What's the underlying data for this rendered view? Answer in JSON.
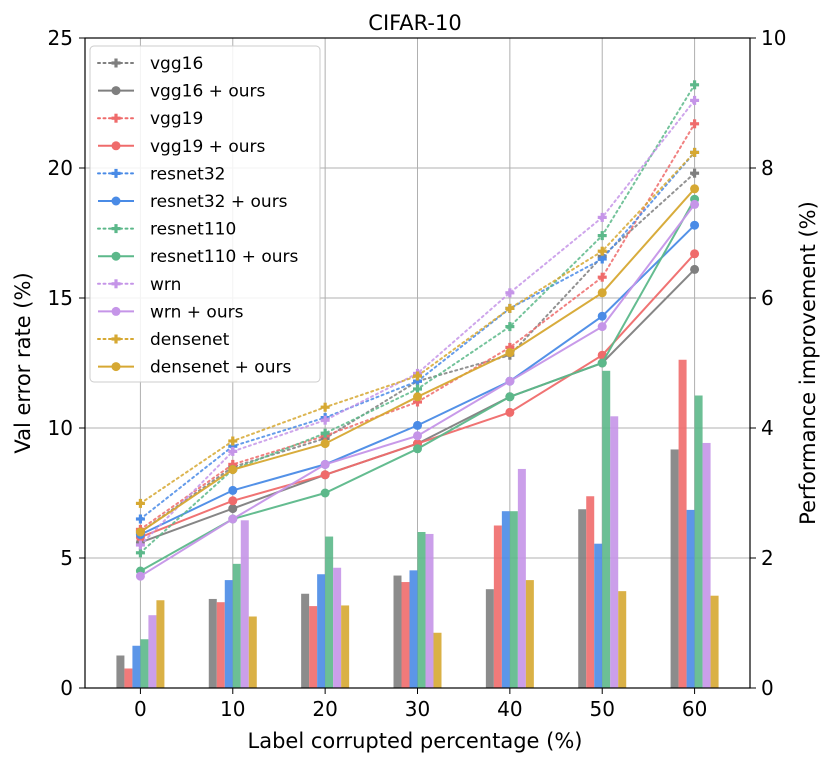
{
  "chart_data": {
    "type": "line+bar",
    "title": "CIFAR-10",
    "xlabel": "Label corrupted percentage (%)",
    "ylabel": "Val error rate (%)",
    "y2label": "Performance improvement (%)",
    "x": [
      0,
      10,
      20,
      30,
      40,
      50,
      60
    ],
    "xticks": [
      "0",
      "10",
      "20",
      "30",
      "40",
      "50",
      "60"
    ],
    "ylim": [
      0,
      25
    ],
    "yticks": [
      "0",
      "5",
      "10",
      "15",
      "20",
      "25"
    ],
    "y2lim": [
      0,
      10
    ],
    "y2ticks": [
      "0",
      "2",
      "4",
      "6",
      "8",
      "10"
    ],
    "grid": true,
    "legend_position": "top-left",
    "colors": {
      "vgg16": "#7f7f7f",
      "vgg19": "#ef6b6b",
      "resnet32": "#4a8be6",
      "resnet110": "#5cb88a",
      "wrn": "#c595e8",
      "densenet": "#d6a832"
    },
    "series": [
      {
        "name": "vgg16",
        "model": "vgg16",
        "style": "baseline",
        "values": [
          6.0,
          8.5,
          9.6,
          11.8,
          12.8,
          16.6,
          19.8
        ]
      },
      {
        "name": "vgg16 + ours",
        "model": "vgg16",
        "style": "ours",
        "values": [
          5.6,
          6.9,
          8.2,
          9.4,
          11.2,
          12.5,
          16.1
        ]
      },
      {
        "name": "vgg19",
        "model": "vgg19",
        "style": "baseline",
        "values": [
          6.1,
          8.6,
          9.7,
          11.0,
          13.1,
          15.8,
          21.7
        ]
      },
      {
        "name": "vgg19 + ours",
        "model": "vgg19",
        "style": "ours",
        "values": [
          5.8,
          7.2,
          8.2,
          9.4,
          10.6,
          12.8,
          16.7
        ]
      },
      {
        "name": "resnet32",
        "model": "resnet32",
        "style": "baseline",
        "values": [
          6.5,
          9.3,
          10.4,
          11.8,
          14.6,
          16.5,
          20.6
        ]
      },
      {
        "name": "resnet32 + ours",
        "model": "resnet32",
        "style": "ours",
        "values": [
          5.9,
          7.6,
          8.6,
          10.1,
          11.8,
          14.3,
          17.8
        ]
      },
      {
        "name": "resnet110",
        "model": "resnet110",
        "style": "baseline",
        "values": [
          5.2,
          8.4,
          9.8,
          11.5,
          13.9,
          17.4,
          23.2
        ]
      },
      {
        "name": "resnet110 + ours",
        "model": "resnet110",
        "style": "ours",
        "values": [
          4.5,
          6.5,
          7.5,
          9.2,
          11.2,
          12.5,
          18.8
        ]
      },
      {
        "name": "wrn",
        "model": "wrn",
        "style": "baseline",
        "values": [
          5.5,
          9.1,
          10.3,
          12.1,
          15.2,
          18.1,
          22.6
        ]
      },
      {
        "name": "wrn + ours",
        "model": "wrn",
        "style": "ours",
        "values": [
          4.3,
          6.5,
          8.6,
          9.7,
          11.8,
          13.9,
          18.6
        ]
      },
      {
        "name": "densenet",
        "model": "densenet",
        "style": "baseline",
        "values": [
          7.1,
          9.5,
          10.8,
          12.0,
          14.6,
          16.8,
          20.6
        ]
      },
      {
        "name": "densenet + ours",
        "model": "densenet",
        "style": "ours",
        "values": [
          6.0,
          8.4,
          9.4,
          11.2,
          12.9,
          15.2,
          19.2
        ]
      }
    ],
    "bars": {
      "axis": "right",
      "series": [
        {
          "name": "vgg16",
          "values": [
            0.5,
            1.37,
            1.45,
            1.73,
            1.52,
            2.75,
            3.67
          ]
        },
        {
          "name": "vgg19",
          "values": [
            0.3,
            1.32,
            1.26,
            1.63,
            2.5,
            2.95,
            5.05
          ]
        },
        {
          "name": "resnet32",
          "values": [
            0.65,
            1.66,
            1.75,
            1.81,
            2.72,
            2.22,
            2.74
          ]
        },
        {
          "name": "resnet110",
          "values": [
            0.75,
            1.91,
            2.33,
            2.4,
            2.72,
            4.88,
            4.5
          ]
        },
        {
          "name": "wrn",
          "values": [
            1.12,
            2.58,
            1.85,
            2.37,
            3.37,
            4.18,
            3.77
          ]
        },
        {
          "name": "densenet",
          "values": [
            1.35,
            1.1,
            1.27,
            0.85,
            1.66,
            1.49,
            1.42
          ]
        }
      ]
    }
  }
}
